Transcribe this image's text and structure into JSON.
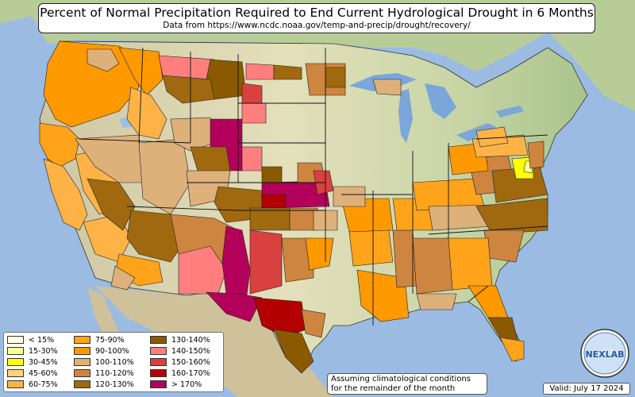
{
  "title": "Percent of Normal Precipitation Required to End Current Hydrological Drought in 6 Months",
  "subtitle": "Data from https://www.ncdc.noaa.gov/temp-and-precip/drought/recovery/",
  "note_line1": "Assuming climatological conditions",
  "note_line2": "for the remainder of the month",
  "valid_label": "Valid: July 17 2024",
  "logo_text": "NEXLAB",
  "legend": [
    {
      "label": "< 15%",
      "color": "#ffffe6"
    },
    {
      "label": "15-30%",
      "color": "#ffff99"
    },
    {
      "label": "30-45%",
      "color": "#ffff00"
    },
    {
      "label": "45-60%",
      "color": "#ffd27f"
    },
    {
      "label": "60-75%",
      "color": "#ffb347"
    },
    {
      "label": "75-90%",
      "color": "#ffa31a"
    },
    {
      "label": "90-100%",
      "color": "#ff9900"
    },
    {
      "label": "100-110%",
      "color": "#deb07a"
    },
    {
      "label": "110-120%",
      "color": "#cd853f"
    },
    {
      "label": "120-130%",
      "color": "#a0690f"
    },
    {
      "label": "130-140%",
      "color": "#8b5a00"
    },
    {
      "label": "140-150%",
      "color": "#ff7f7f"
    },
    {
      "label": "150-160%",
      "color": "#d94040"
    },
    {
      "label": "160-170%",
      "color": "#b30000"
    },
    {
      "label": "> 170%",
      "color": "#b3005a"
    }
  ],
  "colors": {
    "ocean": "#9bbbe3",
    "land_green": "#b9cf9a",
    "land_plain": "#e8e5c4",
    "land_desert": "#d8c9a4",
    "lake": "#7aa6d9"
  }
}
